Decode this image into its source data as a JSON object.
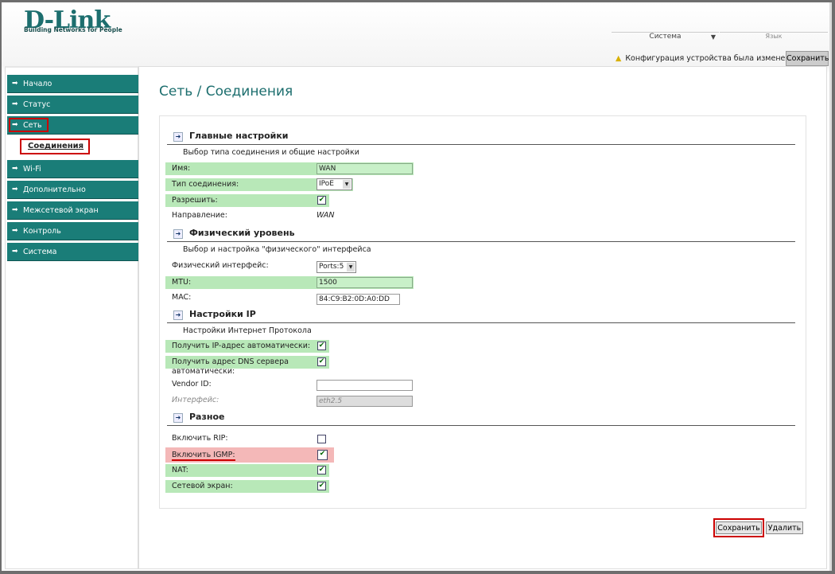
{
  "brand": {
    "logo": "D-Link",
    "tagline": "Building Networks for People"
  },
  "header": {
    "system_menu": "Система",
    "language": "Язык",
    "warning": "Конфигурация устройства была изменена",
    "save": "Сохранить"
  },
  "sidebar": {
    "items": [
      {
        "label": "Начало"
      },
      {
        "label": "Статус"
      },
      {
        "label": "Сеть",
        "sub": "Соединения"
      },
      {
        "label": "Wi-Fi"
      },
      {
        "label": "Дополнительно"
      },
      {
        "label": "Межсетевой экран"
      },
      {
        "label": "Контроль"
      },
      {
        "label": "Система"
      }
    ]
  },
  "page_title": "Сеть  / Соединения",
  "main": {
    "title": "Главные настройки",
    "subtitle": "Выбор типа соединения и общие настройки",
    "name_label": "Имя:",
    "name_value": "WAN",
    "type_label": "Тип соединения:",
    "type_value": "IPoE",
    "enable_label": "Разрешить:",
    "enable": true,
    "direction_label": "Направление:",
    "direction_value": "WAN"
  },
  "physical": {
    "title": "Физический уровень",
    "subtitle": "Выбор и настройка \"физического\" интерфейса",
    "iface_label": "Физический интерфейс:",
    "iface_value": "Ports:5",
    "mtu_label": "MTU:",
    "mtu_value": "1500",
    "mac_label": "MAC:",
    "mac_value": "84:C9:B2:0D:A0:DD"
  },
  "ip": {
    "title": "Настройки IP",
    "subtitle": "Настройки Интернет Протокола",
    "auto_ip_label": "Получить IP-адрес автоматически:",
    "auto_ip": true,
    "auto_dns_label": "Получить адрес DNS сервера",
    "auto_dns_label2": "автоматически:",
    "auto_dns": true,
    "vendor_label": "Vendor ID:",
    "vendor_value": "",
    "iface_label": "Интерфейс:",
    "iface_value": "eth2.5"
  },
  "misc": {
    "title": "Разное",
    "rip_label": "Включить RIP:",
    "rip": false,
    "igmp_label": "Включить IGMP:",
    "igmp": true,
    "nat_label": "NAT:",
    "nat": true,
    "fw_label": "Сетевой экран:",
    "fw": true
  },
  "buttons": {
    "save": "Сохранить",
    "delete": "Удалить"
  },
  "colors": {
    "teal": "#1a7d78",
    "highlight": "#c00000",
    "green_row": "#b8e8b8",
    "igmp_row": "#f4b8b8"
  },
  "check_mark": "✔"
}
